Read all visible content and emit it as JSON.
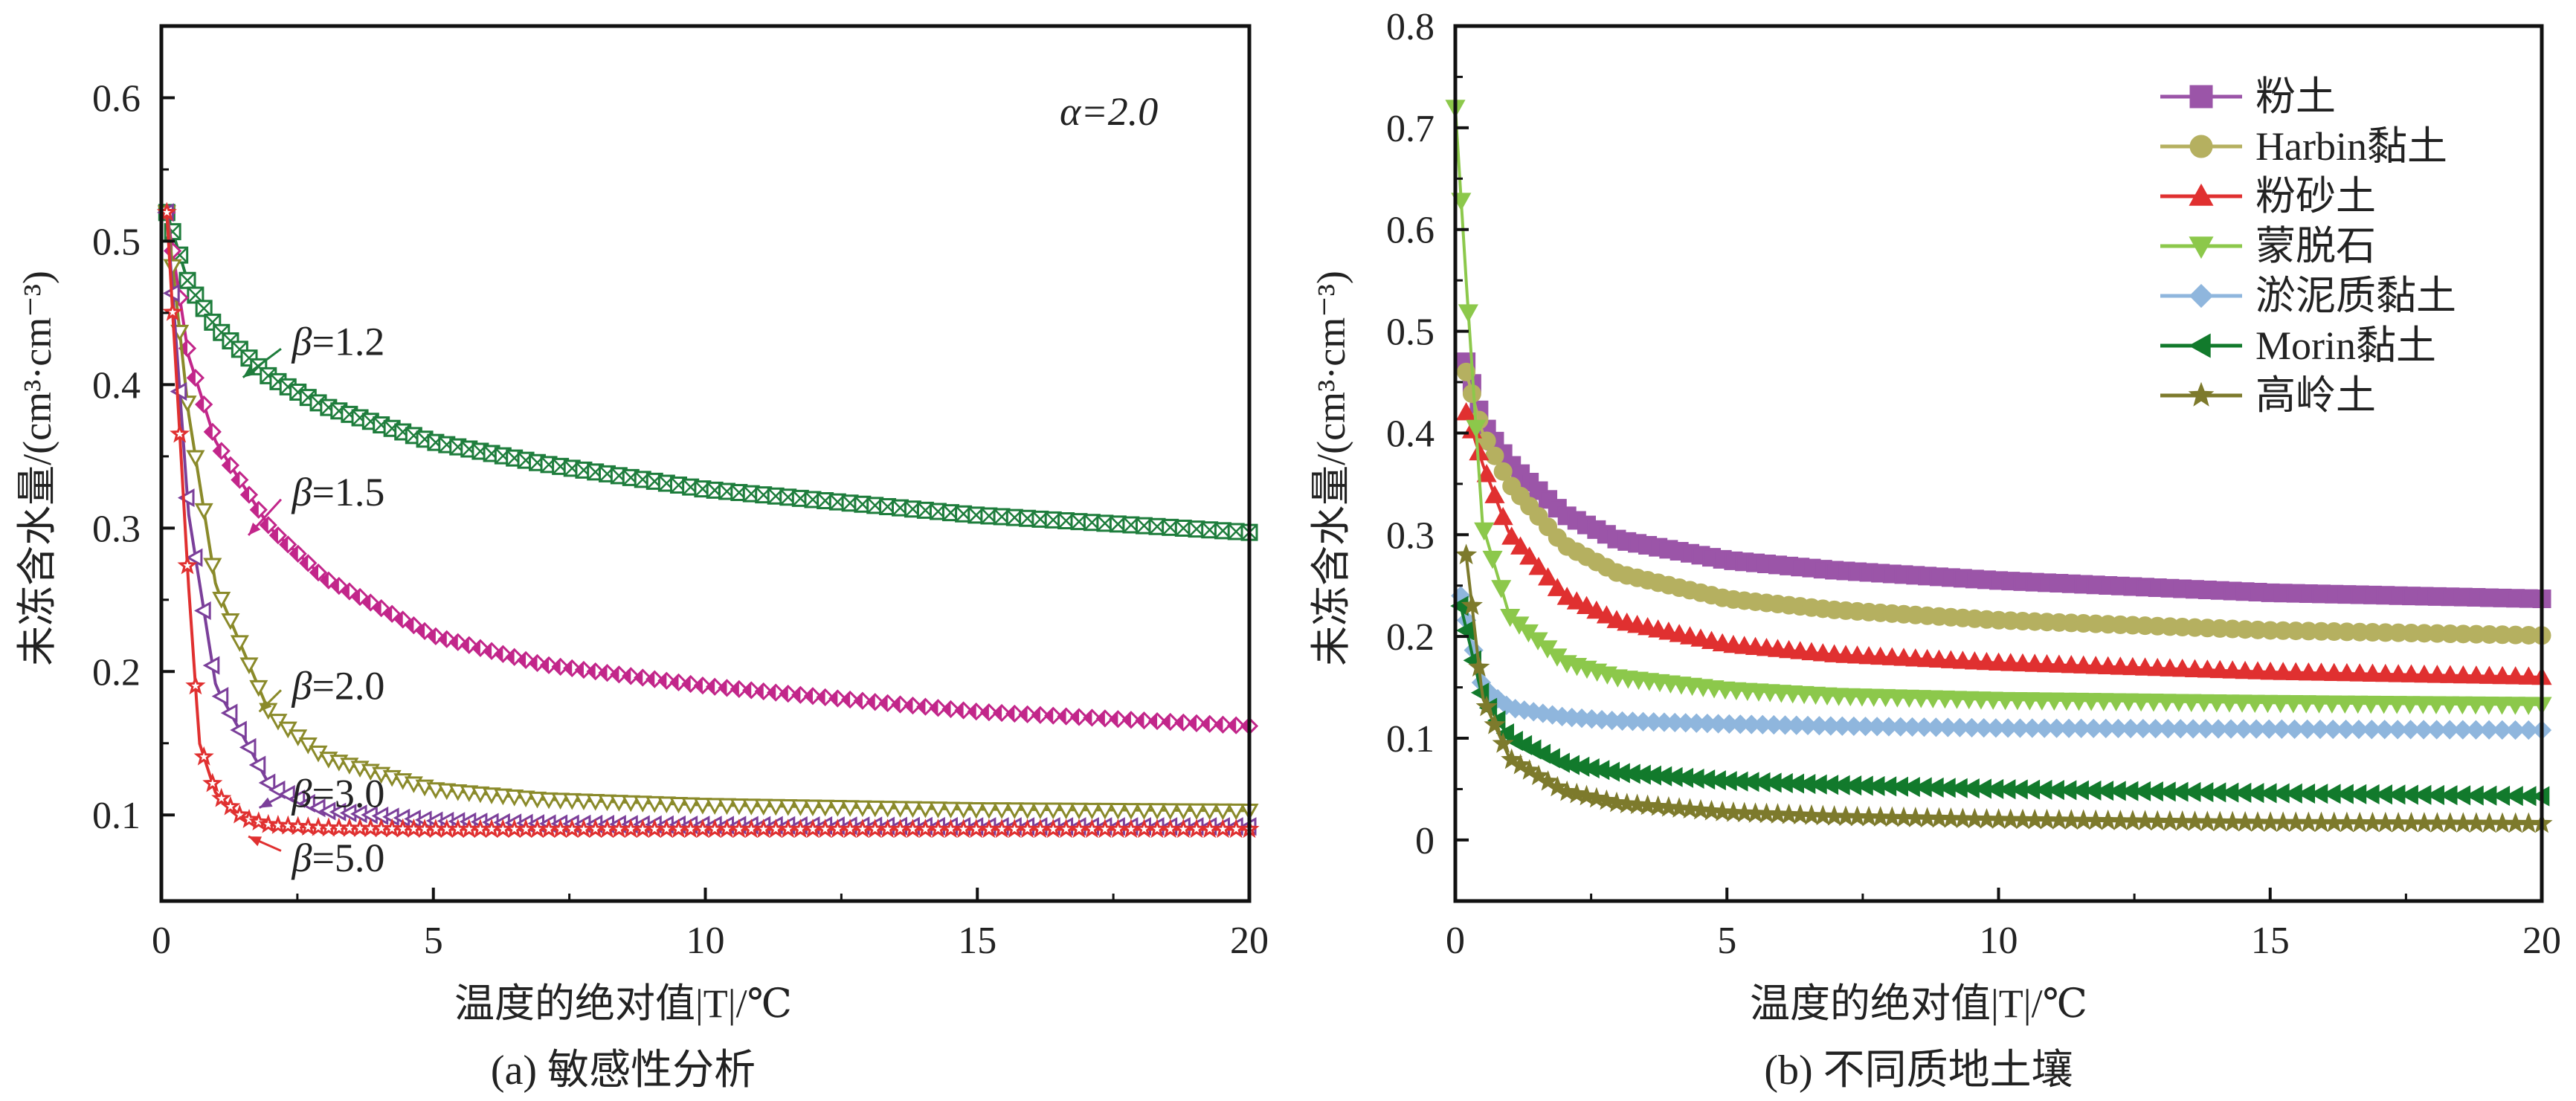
{
  "chart_data": [
    {
      "type": "line",
      "caption": "(a) 敏感性分析",
      "xlabel": "温度的绝对值|T|/℃",
      "ylabel": "未冻含水量/(cm³·cm⁻³)",
      "xlim": [
        0,
        20
      ],
      "ylim": [
        0.04,
        0.65
      ],
      "xticks": [
        "0",
        "5",
        "10",
        "15",
        "20"
      ],
      "yticks": [
        "0.1",
        "0.2",
        "0.3",
        "0.4",
        "0.5",
        "0.6"
      ],
      "annotation": "α=2.0",
      "grid": false,
      "legend": "none",
      "series": [
        {
          "name": "β=1.2",
          "color": "#1e7d3c",
          "marker": "square-x",
          "x": [
            0.1,
            0.5,
            1,
            2,
            3,
            5,
            7,
            10,
            15,
            20
          ],
          "y": [
            0.52,
            0.47,
            0.44,
            0.405,
            0.385,
            0.36,
            0.345,
            0.327,
            0.309,
            0.297
          ]
        },
        {
          "name": "β=1.5",
          "color": "#c2268a",
          "marker": "diamond-half",
          "x": [
            0.1,
            0.5,
            1,
            2,
            3,
            5,
            7,
            10,
            15,
            20
          ],
          "y": [
            0.52,
            0.42,
            0.36,
            0.3,
            0.265,
            0.225,
            0.205,
            0.19,
            0.172,
            0.162
          ]
        },
        {
          "name": "β=2.0",
          "color": "#8a8a2a",
          "marker": "triangle-down",
          "x": [
            0.1,
            0.5,
            1,
            2,
            3,
            5,
            7,
            10,
            15,
            20
          ],
          "y": [
            0.52,
            0.38,
            0.26,
            0.17,
            0.14,
            0.118,
            0.111,
            0.107,
            0.104,
            0.103
          ]
        },
        {
          "name": "β=3.0",
          "color": "#7b3f9a",
          "marker": "triangle-left",
          "x": [
            0.1,
            0.5,
            1,
            2,
            3,
            5,
            7,
            10,
            15,
            20
          ],
          "y": [
            0.52,
            0.31,
            0.19,
            0.12,
            0.103,
            0.096,
            0.094,
            0.093,
            0.092,
            0.092
          ]
        },
        {
          "name": "β=5.0",
          "color": "#e03030",
          "marker": "star",
          "x": [
            0.1,
            0.5,
            0.7,
            1,
            1.5,
            2,
            3,
            5,
            10,
            20
          ],
          "y": [
            0.52,
            0.26,
            0.15,
            0.115,
            0.098,
            0.093,
            0.091,
            0.09,
            0.09,
            0.09
          ]
        }
      ],
      "labels": [
        {
          "text": "β=1.2",
          "series": 0
        },
        {
          "text": "β=1.5",
          "series": 1
        },
        {
          "text": "β=2.0",
          "series": 2
        },
        {
          "text": "β=3.0",
          "series": 3
        },
        {
          "text": "β=5.0",
          "series": 4
        }
      ]
    },
    {
      "type": "line",
      "caption": "(b) 不同质地土壤",
      "xlabel": "温度的绝对值|T|/℃",
      "ylabel": "未冻含水量/(cm³·cm⁻³)",
      "xlim": [
        0,
        20
      ],
      "ylim": [
        -0.06,
        0.8
      ],
      "xticks": [
        "0",
        "5",
        "10",
        "15",
        "20"
      ],
      "yticks": [
        "0",
        "0.1",
        "0.2",
        "0.3",
        "0.4",
        "0.5",
        "0.6",
        "0.7",
        "0.8"
      ],
      "grid": false,
      "legend": "top-right",
      "series": [
        {
          "name": "粉土",
          "color": "#9b55a8",
          "marker": "square",
          "x": [
            0.2,
            0.5,
            1,
            2,
            3,
            5,
            7,
            10,
            15,
            20
          ],
          "y": [
            0.47,
            0.41,
            0.37,
            0.32,
            0.295,
            0.275,
            0.265,
            0.255,
            0.243,
            0.237
          ]
        },
        {
          "name": "Harbin黏土",
          "color": "#b5b060",
          "marker": "circle",
          "x": [
            0.2,
            0.5,
            1,
            2,
            3,
            5,
            7,
            10,
            15,
            20
          ],
          "y": [
            0.46,
            0.4,
            0.35,
            0.29,
            0.262,
            0.237,
            0.226,
            0.216,
            0.206,
            0.201
          ]
        },
        {
          "name": "粉砂土",
          "color": "#e03030",
          "marker": "triangle-up",
          "x": [
            0.2,
            0.5,
            1,
            2,
            3,
            5,
            7,
            10,
            15,
            20
          ],
          "y": [
            0.42,
            0.37,
            0.3,
            0.24,
            0.215,
            0.192,
            0.182,
            0.174,
            0.165,
            0.16
          ]
        },
        {
          "name": "蒙脱石",
          "color": "#8cc84b",
          "marker": "triangle-down",
          "x": [
            0,
            0.2,
            0.5,
            1,
            2,
            3,
            5,
            7,
            10,
            15,
            20
          ],
          "y": [
            0.72,
            0.55,
            0.31,
            0.22,
            0.175,
            0.16,
            0.148,
            0.142,
            0.138,
            0.135,
            0.133
          ]
        },
        {
          "name": "淤泥质黏土",
          "color": "#8fb6dd",
          "marker": "diamond",
          "x": [
            0.1,
            0.5,
            1,
            2,
            3,
            5,
            7,
            10,
            15,
            20
          ],
          "y": [
            0.24,
            0.15,
            0.13,
            0.121,
            0.117,
            0.114,
            0.112,
            0.11,
            0.109,
            0.108
          ]
        },
        {
          "name": "Morin黏土",
          "color": "#127a2c",
          "marker": "triangle-left",
          "x": [
            0.1,
            0.5,
            1,
            2,
            3,
            5,
            7,
            10,
            15,
            20
          ],
          "y": [
            0.23,
            0.14,
            0.1,
            0.075,
            0.066,
            0.058,
            0.054,
            0.05,
            0.046,
            0.043
          ]
        },
        {
          "name": "高岭土",
          "color": "#7d7a2c",
          "marker": "star",
          "x": [
            0.2,
            0.5,
            1,
            2,
            3,
            5,
            7,
            10,
            15,
            20
          ],
          "y": [
            0.28,
            0.14,
            0.08,
            0.048,
            0.036,
            0.027,
            0.023,
            0.02,
            0.017,
            0.016
          ]
        }
      ]
    }
  ]
}
